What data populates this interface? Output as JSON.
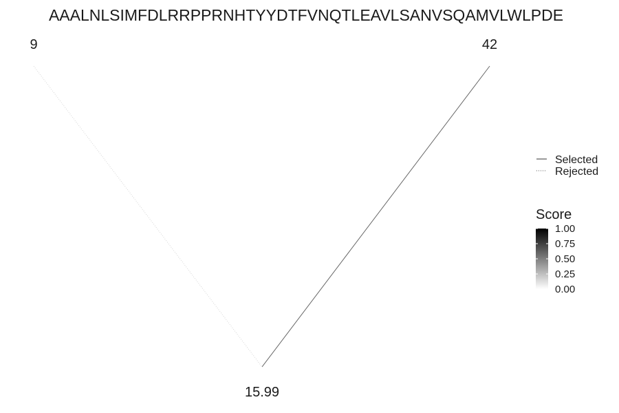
{
  "chart_data": {
    "type": "diagram",
    "title": "AAALNLSIMFDLRRPPRNHTYYDTFVNQTLEAVLSANVSQAMVLWLPDE",
    "nodes": [
      {
        "id": "left",
        "label": "9"
      },
      {
        "id": "right",
        "label": "42"
      },
      {
        "id": "bottom",
        "label": "15.99"
      }
    ],
    "edges": [
      {
        "from": "left",
        "to": "bottom",
        "status": "Rejected",
        "score": 0.02
      },
      {
        "from": "right",
        "to": "bottom",
        "status": "Selected",
        "score": 0.6
      }
    ],
    "legend_line": {
      "items": [
        {
          "label": "Selected",
          "style": "solid"
        },
        {
          "label": "Rejected",
          "style": "dotted"
        }
      ],
      "placement": "right"
    },
    "legend_score": {
      "title": "Score",
      "ticks": [
        "1.00",
        "0.75",
        "0.50",
        "0.25",
        "0.00"
      ],
      "range": [
        0,
        1
      ],
      "low_color": "#ffffff",
      "high_color": "#000000",
      "placement": "right"
    }
  }
}
